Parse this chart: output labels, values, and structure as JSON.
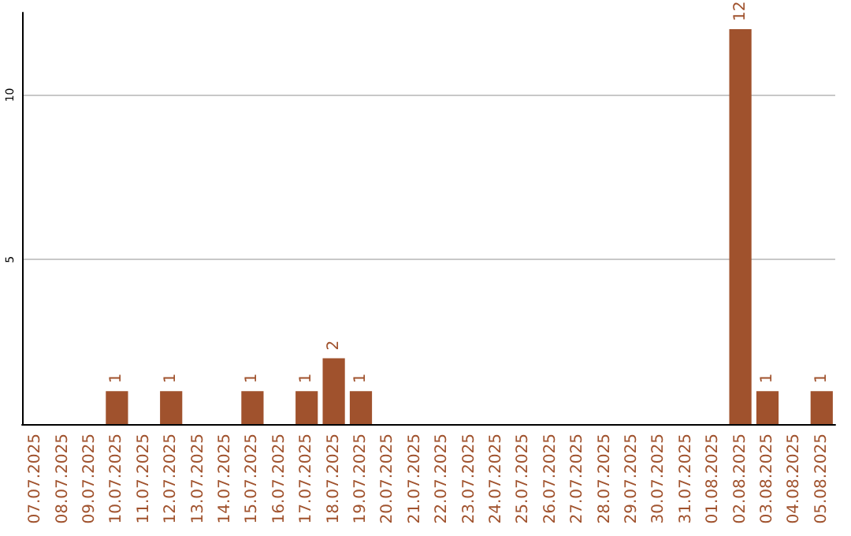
{
  "chart_data": {
    "type": "bar",
    "categories": [
      "07.07.2025",
      "08.07.2025",
      "09.07.2025",
      "10.07.2025",
      "11.07.2025",
      "12.07.2025",
      "13.07.2025",
      "14.07.2025",
      "15.07.2025",
      "16.07.2025",
      "17.07.2025",
      "18.07.2025",
      "19.07.2025",
      "20.07.2025",
      "21.07.2025",
      "22.07.2025",
      "23.07.2025",
      "24.07.2025",
      "25.07.2025",
      "26.07.2025",
      "27.07.2025",
      "28.07.2025",
      "29.07.2025",
      "30.07.2025",
      "31.07.2025",
      "01.08.2025",
      "02.08.2025",
      "03.08.2025",
      "04.08.2025",
      "05.08.2025"
    ],
    "values": [
      0,
      0,
      0,
      1,
      0,
      1,
      0,
      0,
      1,
      0,
      1,
      2,
      1,
      0,
      0,
      0,
      0,
      0,
      0,
      0,
      0,
      0,
      0,
      0,
      0,
      0,
      12,
      1,
      0,
      1
    ],
    "value_labels": [
      null,
      null,
      null,
      "1",
      null,
      "1",
      null,
      null,
      "1",
      null,
      "1",
      "2",
      "1",
      null,
      null,
      null,
      null,
      null,
      null,
      null,
      null,
      null,
      null,
      null,
      null,
      null,
      "12",
      "1",
      null,
      "1"
    ],
    "color": "#a0522d",
    "ylim": [
      0,
      12.5
    ],
    "yticks": [
      5,
      10
    ],
    "grid": "y"
  }
}
